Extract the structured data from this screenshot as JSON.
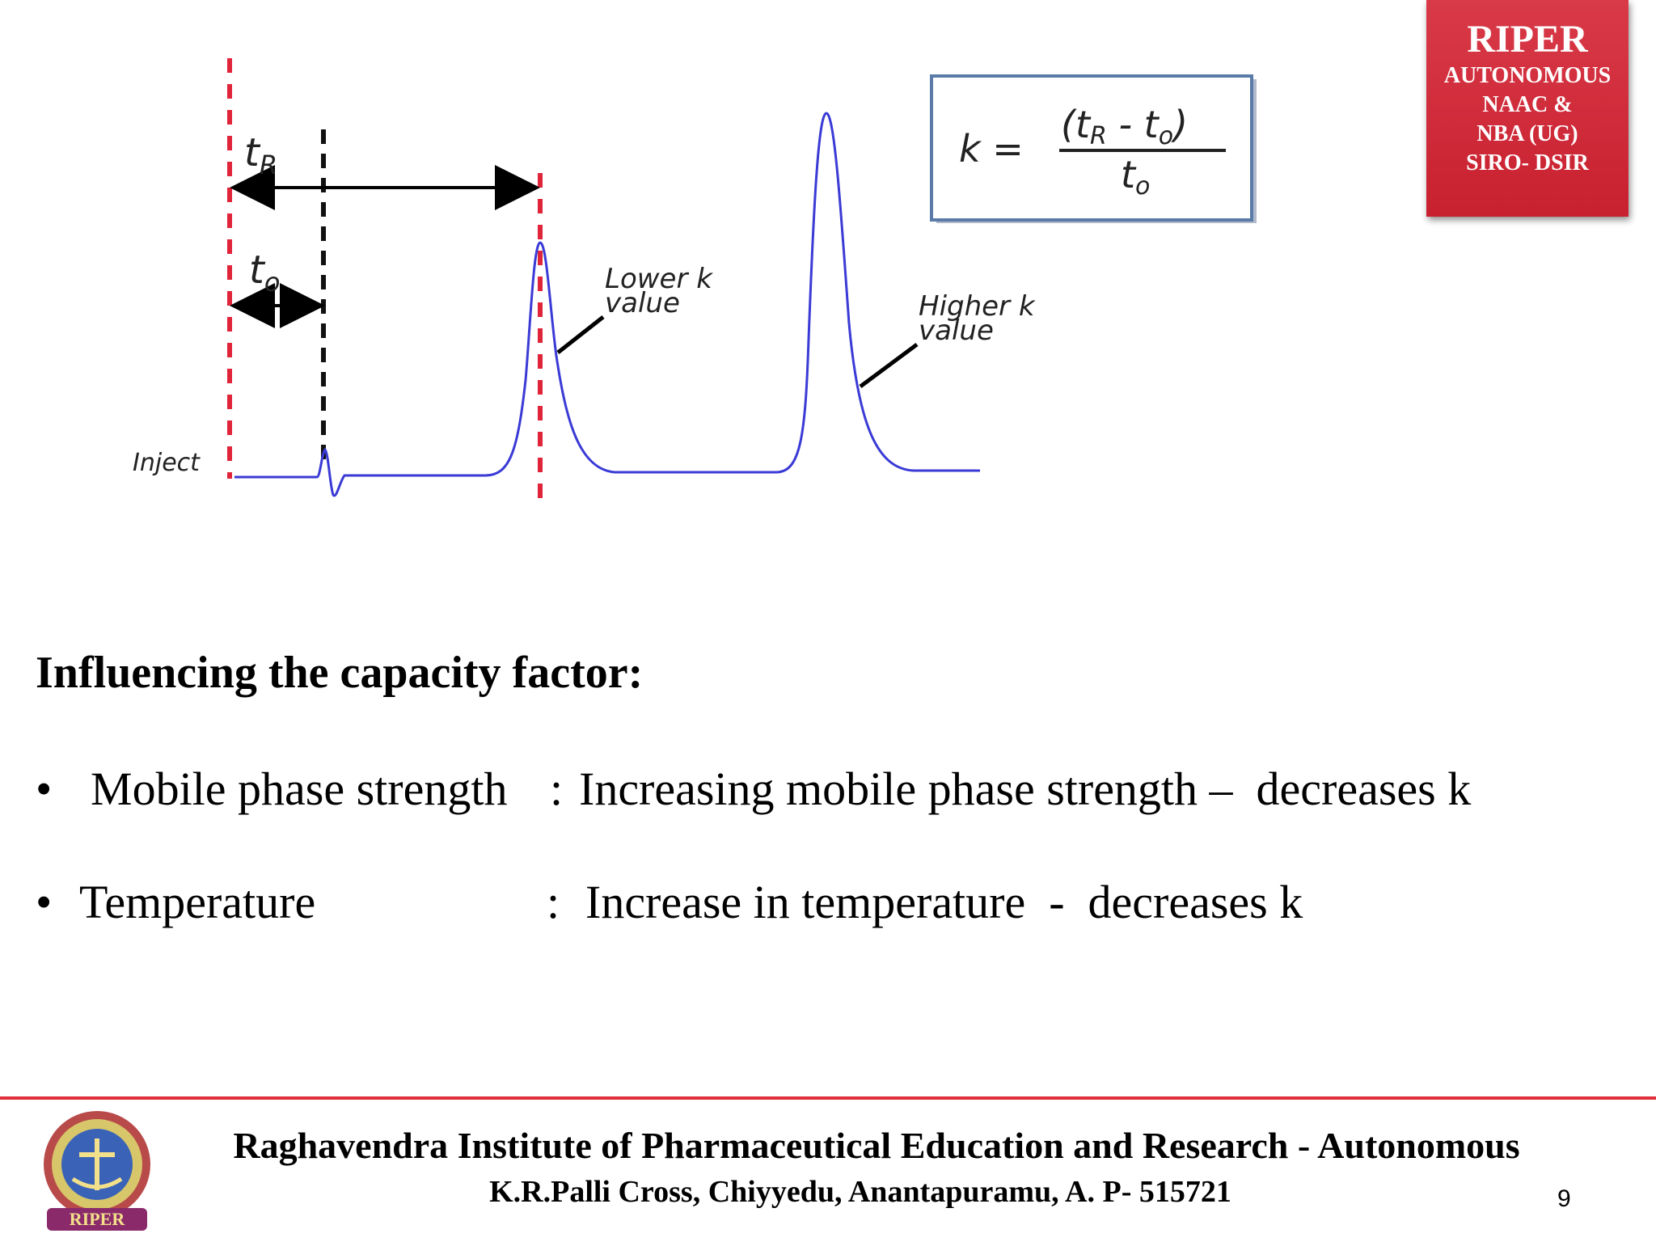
{
  "badge": {
    "title": "RIPER",
    "line1": "AUTONOMOUS",
    "line2": "NAAC &",
    "line3": "NBA (UG)",
    "line4": "SIRO- DSIR",
    "color": "#cc2433"
  },
  "diagram": {
    "label_tR": "tR",
    "label_t0": "to",
    "label_inject": "Inject",
    "label_lower_line1": "Lower k",
    "label_lower_line2": "value",
    "label_higher_line1": "Higher k",
    "label_higher_line2": "value",
    "formula_lhs": "k =",
    "formula_numerator": "(tR - to)",
    "formula_denominator": "to",
    "peak_color": "#3a3ad6",
    "marker_color": "#e0253a"
  },
  "content": {
    "heading": "Influencing the capacity factor:",
    "bullets": [
      {
        "label": "Mobile phase strength",
        "separator": ":",
        "text": "Increasing mobile phase strength –  decreases k"
      },
      {
        "label": "Temperature",
        "separator": ":",
        "text": "Increase in temperature  -  decreases k"
      }
    ]
  },
  "footer": {
    "institute": "Raghavendra Institute of Pharmaceutical Education and Research - Autonomous",
    "address": "K.R.Palli Cross, Chiyyedu, Anantapuramu, A. P- 515721",
    "page_number": "9",
    "logo_text": "RIPER"
  }
}
